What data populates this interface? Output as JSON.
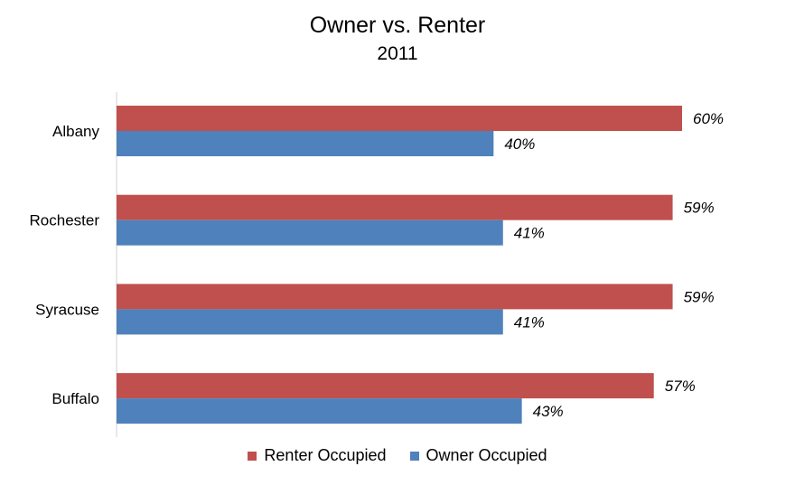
{
  "chart_data": {
    "type": "bar",
    "orientation": "horizontal",
    "title": "Owner vs. Renter",
    "subtitle": "2011",
    "categories": [
      "Albany",
      "Rochester",
      "Syracuse",
      "Buffalo"
    ],
    "series": [
      {
        "name": "Renter Occupied",
        "color": "#C0504D",
        "values": [
          60,
          59,
          59,
          57
        ],
        "labels": [
          "60%",
          "59%",
          "59%",
          "57%"
        ]
      },
      {
        "name": "Owner Occupied",
        "color": "#4F81BD",
        "values": [
          40,
          41,
          41,
          43
        ],
        "labels": [
          "40%",
          "41%",
          "41%",
          "43%"
        ]
      }
    ],
    "xlim": [
      0,
      60
    ],
    "grid": false,
    "legend": "bottom"
  }
}
